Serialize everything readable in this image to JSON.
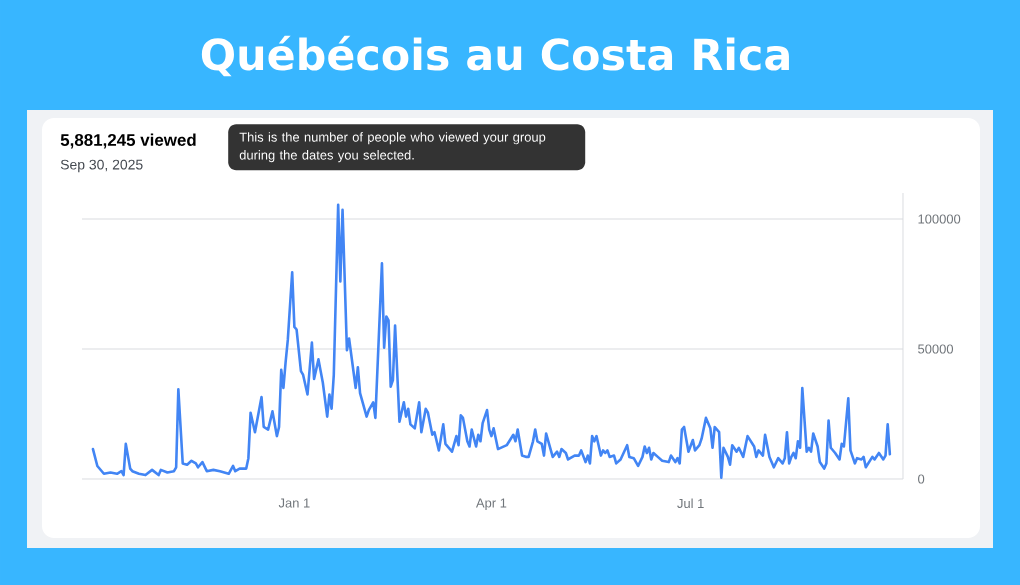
{
  "chart_data": {
    "type": "line",
    "title": "Québécois au Costa Rica",
    "subtitle": "5,881,245 viewed",
    "annotations": [
      "Sep 30, 2025",
      "This is the number of people who viewed your group during the dates you selected."
    ],
    "x": [
      "2024-10-01",
      "2024-10-03",
      "2024-10-06",
      "2024-10-09",
      "2024-10-12",
      "2024-10-14",
      "2024-10-15",
      "2024-10-16",
      "2024-10-18",
      "2024-10-19",
      "2024-10-22",
      "2024-10-25",
      "2024-10-28",
      "2024-10-31",
      "2024-11-01",
      "2024-11-04",
      "2024-11-07",
      "2024-11-08",
      "2024-11-09",
      "2024-11-11",
      "2024-11-13",
      "2024-11-15",
      "2024-11-17",
      "2024-11-18",
      "2024-11-20",
      "2024-11-22",
      "2024-11-25",
      "2024-11-28",
      "2024-12-02",
      "2024-12-04",
      "2024-12-05",
      "2024-12-07",
      "2024-12-10",
      "2024-12-11",
      "2024-12-12",
      "2024-12-14",
      "2024-12-17",
      "2024-12-18",
      "2024-12-20",
      "2024-12-22",
      "2024-12-24",
      "2024-12-25",
      "2024-12-26",
      "2024-12-27",
      "2024-12-28",
      "2024-12-29",
      "2024-12-31",
      "2025-01-01",
      "2025-01-02",
      "2025-01-04",
      "2025-01-05",
      "2025-01-07",
      "2025-01-09",
      "2025-01-10",
      "2025-01-12",
      "2025-01-14",
      "2025-01-16",
      "2025-01-17",
      "2025-01-18",
      "2025-01-19",
      "2025-01-21",
      "2025-01-22",
      "2025-01-23",
      "2025-01-25",
      "2025-01-26",
      "2025-01-29",
      "2025-01-30",
      "2025-01-31",
      "2025-02-03",
      "2025-02-04",
      "2025-02-06",
      "2025-02-07",
      "2025-02-10",
      "2025-02-11",
      "2025-02-12",
      "2025-02-13",
      "2025-02-14",
      "2025-02-15",
      "2025-02-16",
      "2025-02-18",
      "2025-02-20",
      "2025-02-21",
      "2025-02-22",
      "2025-02-23",
      "2025-02-25",
      "2025-02-27",
      "2025-02-28",
      "2025-03-02",
      "2025-03-03",
      "2025-03-05",
      "2025-03-06",
      "2025-03-08",
      "2025-03-10",
      "2025-03-11",
      "2025-03-14",
      "2025-03-16",
      "2025-03-17",
      "2025-03-18",
      "2025-03-19",
      "2025-03-21",
      "2025-03-22",
      "2025-03-23",
      "2025-03-25",
      "2025-03-26",
      "2025-03-27",
      "2025-03-28",
      "2025-03-30",
      "2025-03-31",
      "2025-04-01",
      "2025-04-02",
      "2025-04-04",
      "2025-04-08",
      "2025-04-11",
      "2025-04-12",
      "2025-04-13",
      "2025-04-15",
      "2025-04-17",
      "2025-04-18",
      "2025-04-20",
      "2025-04-21",
      "2025-04-22",
      "2025-04-24",
      "2025-04-25",
      "2025-04-26",
      "2025-04-27",
      "2025-04-29",
      "2025-05-01",
      "2025-05-02",
      "2025-05-03",
      "2025-05-05",
      "2025-05-06",
      "2025-05-09",
      "2025-05-11",
      "2025-05-12",
      "2025-05-14",
      "2025-05-15",
      "2025-05-16",
      "2025-05-17",
      "2025-05-18",
      "2025-05-19",
      "2025-05-21",
      "2025-05-22",
      "2025-05-23",
      "2025-05-24",
      "2025-05-25",
      "2025-05-27",
      "2025-05-28",
      "2025-05-30",
      "2025-06-02",
      "2025-06-03",
      "2025-06-05",
      "2025-06-07",
      "2025-06-09",
      "2025-06-10",
      "2025-06-11",
      "2025-06-12",
      "2025-06-13",
      "2025-06-14",
      "2025-06-16",
      "2025-06-18",
      "2025-06-21",
      "2025-06-22",
      "2025-06-24",
      "2025-06-25",
      "2025-06-26",
      "2025-06-27",
      "2025-06-28",
      "2025-06-30",
      "2025-07-02",
      "2025-07-03",
      "2025-07-05",
      "2025-07-06",
      "2025-07-08",
      "2025-07-10",
      "2025-07-11",
      "2025-07-12",
      "2025-07-14",
      "2025-07-15",
      "2025-07-16",
      "2025-07-18",
      "2025-07-19",
      "2025-07-20",
      "2025-07-22",
      "2025-07-23",
      "2025-07-25",
      "2025-07-27",
      "2025-07-30",
      "2025-07-31",
      "2025-08-01",
      "2025-08-03",
      "2025-08-04",
      "2025-08-06",
      "2025-08-08",
      "2025-08-10",
      "2025-08-12",
      "2025-08-13",
      "2025-08-14",
      "2025-08-15",
      "2025-08-16",
      "2025-08-17",
      "2025-08-18",
      "2025-08-19",
      "2025-08-20",
      "2025-08-21",
      "2025-08-23",
      "2025-08-24",
      "2025-08-25",
      "2025-08-26",
      "2025-08-28",
      "2025-08-29",
      "2025-08-31",
      "2025-09-01",
      "2025-09-02",
      "2025-09-03",
      "2025-09-05",
      "2025-09-07",
      "2025-09-08",
      "2025-09-09",
      "2025-09-11",
      "2025-09-12",
      "2025-09-14",
      "2025-09-15",
      "2025-09-17",
      "2025-09-18",
      "2025-09-19",
      "2025-09-22",
      "2025-09-23",
      "2025-09-25",
      "2025-09-27",
      "2025-09-28",
      "2025-09-29",
      "2025-09-30"
    ],
    "values": [
      11500,
      5000,
      2000,
      2500,
      2000,
      3000,
      1500,
      13500,
      4000,
      3000,
      2000,
      1500,
      3500,
      1500,
      3500,
      2500,
      3000,
      4500,
      34500,
      6000,
      5500,
      7000,
      6000,
      4500,
      6500,
      3000,
      3500,
      3000,
      2000,
      5000,
      3000,
      4000,
      4000,
      8000,
      25500,
      18000,
      31500,
      20000,
      19000,
      26000,
      16500,
      20000,
      42000,
      35000,
      45000,
      53500,
      79500,
      58500,
      57500,
      41500,
      40000,
      32500,
      52500,
      38500,
      46000,
      37000,
      24000,
      32500,
      27000,
      40000,
      105500,
      76000,
      103500,
      49500,
      54000,
      35000,
      43000,
      33000,
      24000,
      26500,
      29500,
      23500,
      83000,
      50500,
      62500,
      61000,
      35500,
      38000,
      59000,
      22000,
      29500,
      24000,
      27000,
      21000,
      19500,
      29500,
      18000,
      27000,
      25500,
      17000,
      18000,
      11000,
      21000,
      13500,
      10500,
      16500,
      13000,
      24500,
      23500,
      14500,
      12500,
      19000,
      12500,
      17000,
      14500,
      21500,
      26500,
      19000,
      16500,
      19500,
      11500,
      13000,
      17000,
      14500,
      19000,
      9000,
      8500,
      8500,
      14500,
      19000,
      14500,
      13500,
      9000,
      17500,
      14500,
      8500,
      10500,
      8500,
      11500,
      10000,
      7500,
      9000,
      9000,
      11000,
      6500,
      9000,
      6000,
      16500,
      14500,
      16500,
      9000,
      11000,
      10000,
      11000,
      8500,
      9000,
      6000,
      7500,
      13000,
      8500,
      8000,
      5000,
      8500,
      12500,
      10000,
      12000,
      7500,
      10000,
      8500,
      7000,
      6500,
      9000,
      6500,
      8000,
      6000,
      19000,
      20000,
      10500,
      15000,
      11000,
      13000,
      15500,
      23500,
      19500,
      12000,
      20000,
      18000,
      500,
      12000,
      8500,
      5500,
      13000,
      10500,
      12000,
      8500,
      16500,
      12500,
      8500,
      11000,
      9000,
      17000,
      8500,
      4500,
      8000,
      6000,
      8000,
      18000,
      6000,
      8500,
      10000,
      8000,
      14500,
      12000,
      35000,
      10500,
      12000,
      10500,
      17500,
      12500,
      6500,
      4000,
      6000,
      22500,
      12000,
      10000,
      7500,
      13500,
      12500,
      31000,
      11000,
      6000,
      8000,
      7500,
      8500,
      4500,
      8500,
      7500,
      10000,
      7500,
      9000,
      21000,
      9500
    ],
    "color": "#4285f4",
    "xlim": [
      "2024-09-26",
      "2025-10-06"
    ],
    "xticks": [
      {
        "value": "2025-01-01",
        "label": "Jan 1"
      },
      {
        "value": "2025-04-01",
        "label": "Apr 1"
      },
      {
        "value": "2025-07-01",
        "label": "Jul 1"
      }
    ],
    "ylim": [
      0,
      110000
    ],
    "yticks": [
      0,
      50000,
      100000
    ],
    "grid": "y"
  }
}
